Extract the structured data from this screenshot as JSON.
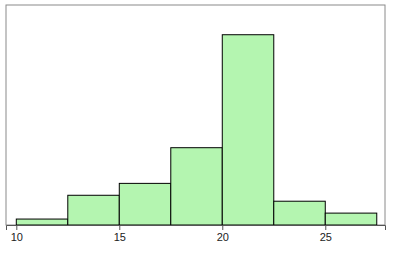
{
  "chart_data": {
    "type": "histogram",
    "bins": [
      10,
      12.5,
      15,
      17.5,
      20,
      22.5,
      25,
      27.5
    ],
    "values": [
      1,
      5,
      7,
      13,
      32,
      4,
      2
    ],
    "color": "#b4f5b0",
    "xlim": [
      9.5,
      27.9
    ],
    "xticks": [
      10,
      15,
      20,
      25
    ],
    "ylim": [
      0,
      37
    ],
    "tick_labels": "x"
  }
}
